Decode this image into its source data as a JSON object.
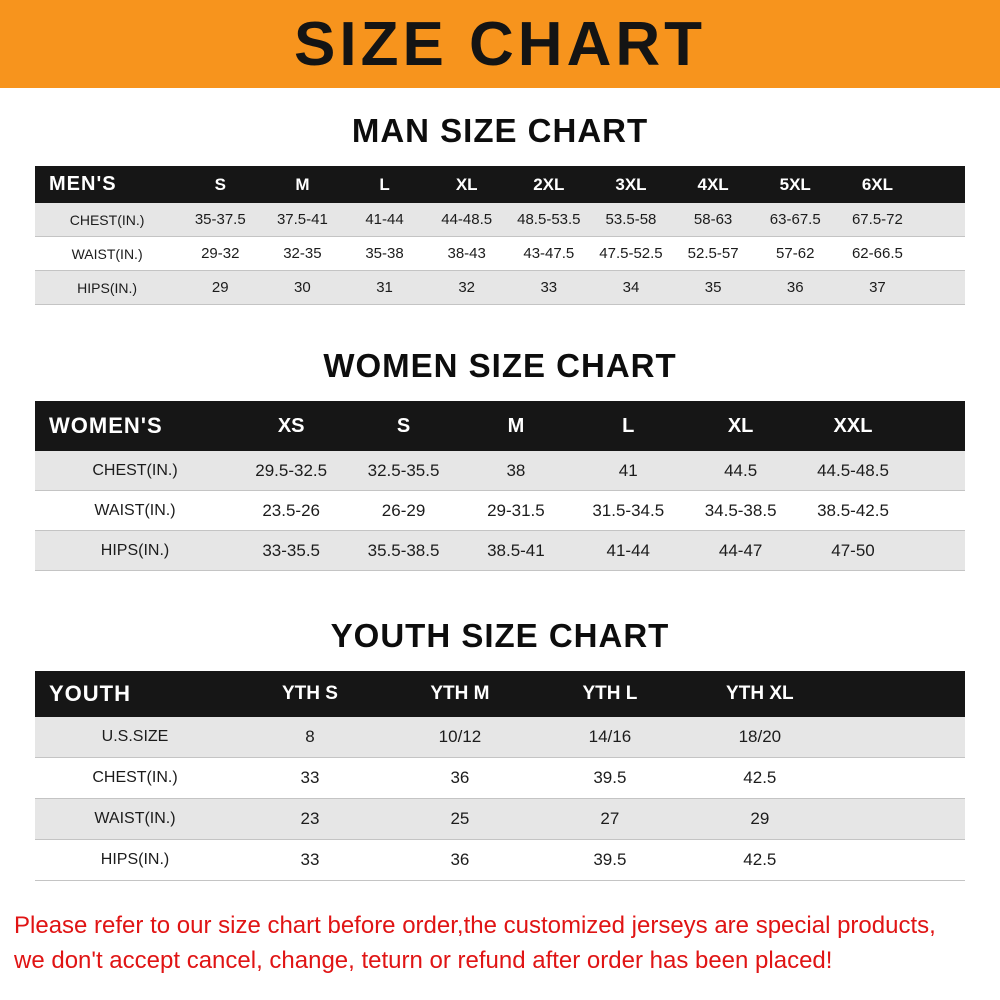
{
  "banner": {
    "title": "SIZE CHART"
  },
  "colors": {
    "banner_bg": "#f7941d",
    "banner_text": "#141414",
    "table_header_bg": "#161616",
    "table_header_text": "#ffffff",
    "row_stripe": "#e6e6e6",
    "row_border": "#c4c4c4",
    "disclaimer_text": "#e01414"
  },
  "sections": [
    {
      "heading": "MAN SIZE CHART",
      "table_title": "MEN'S",
      "columns": [
        "S",
        "M",
        "L",
        "XL",
        "2XL",
        "3XL",
        "4XL",
        "5XL",
        "6XL"
      ],
      "rows": [
        {
          "label": "CHEST(IN.)",
          "values": [
            "35-37.5",
            "37.5-41",
            "41-44",
            "44-48.5",
            "48.5-53.5",
            "53.5-58",
            "58-63",
            "63-67.5",
            "67.5-72"
          ]
        },
        {
          "label": "WAIST(IN.)",
          "values": [
            "29-32",
            "32-35",
            "35-38",
            "38-43",
            "43-47.5",
            "47.5-52.5",
            "52.5-57",
            "57-62",
            "62-66.5"
          ]
        },
        {
          "label": "HIPS(IN.)",
          "values": [
            "29",
            "30",
            "31",
            "32",
            "33",
            "34",
            "35",
            "36",
            "37"
          ]
        }
      ]
    },
    {
      "heading": "WOMEN SIZE CHART",
      "table_title": "WOMEN'S",
      "columns": [
        "XS",
        "S",
        "M",
        "L",
        "XL",
        "XXL"
      ],
      "rows": [
        {
          "label": "CHEST(IN.)",
          "values": [
            "29.5-32.5",
            "32.5-35.5",
            "38",
            "41",
            "44.5",
            "44.5-48.5"
          ]
        },
        {
          "label": "WAIST(IN.)",
          "values": [
            "23.5-26",
            "26-29",
            "29-31.5",
            "31.5-34.5",
            "34.5-38.5",
            "38.5-42.5"
          ]
        },
        {
          "label": "HIPS(IN.)",
          "values": [
            "33-35.5",
            "35.5-38.5",
            "38.5-41",
            "41-44",
            "44-47",
            "47-50"
          ]
        }
      ]
    },
    {
      "heading": "YOUTH SIZE CHART",
      "table_title": "YOUTH",
      "columns": [
        "YTH S",
        "YTH M",
        "YTH L",
        "YTH XL"
      ],
      "rows": [
        {
          "label": "U.S.SIZE",
          "values": [
            "8",
            "10/12",
            "14/16",
            "18/20"
          ]
        },
        {
          "label": "CHEST(IN.)",
          "values": [
            "33",
            "36",
            "39.5",
            "42.5"
          ]
        },
        {
          "label": "WAIST(IN.)",
          "values": [
            "23",
            "25",
            "27",
            "29"
          ]
        },
        {
          "label": "HIPS(IN.)",
          "values": [
            "33",
            "36",
            "39.5",
            "42.5"
          ]
        }
      ]
    }
  ],
  "disclaimer": {
    "lines": [
      "Please refer to our size chart before order,the customized jerseys are special products,",
      "we don't accept cancel, change, teturn or refund after order has been placed!"
    ]
  }
}
